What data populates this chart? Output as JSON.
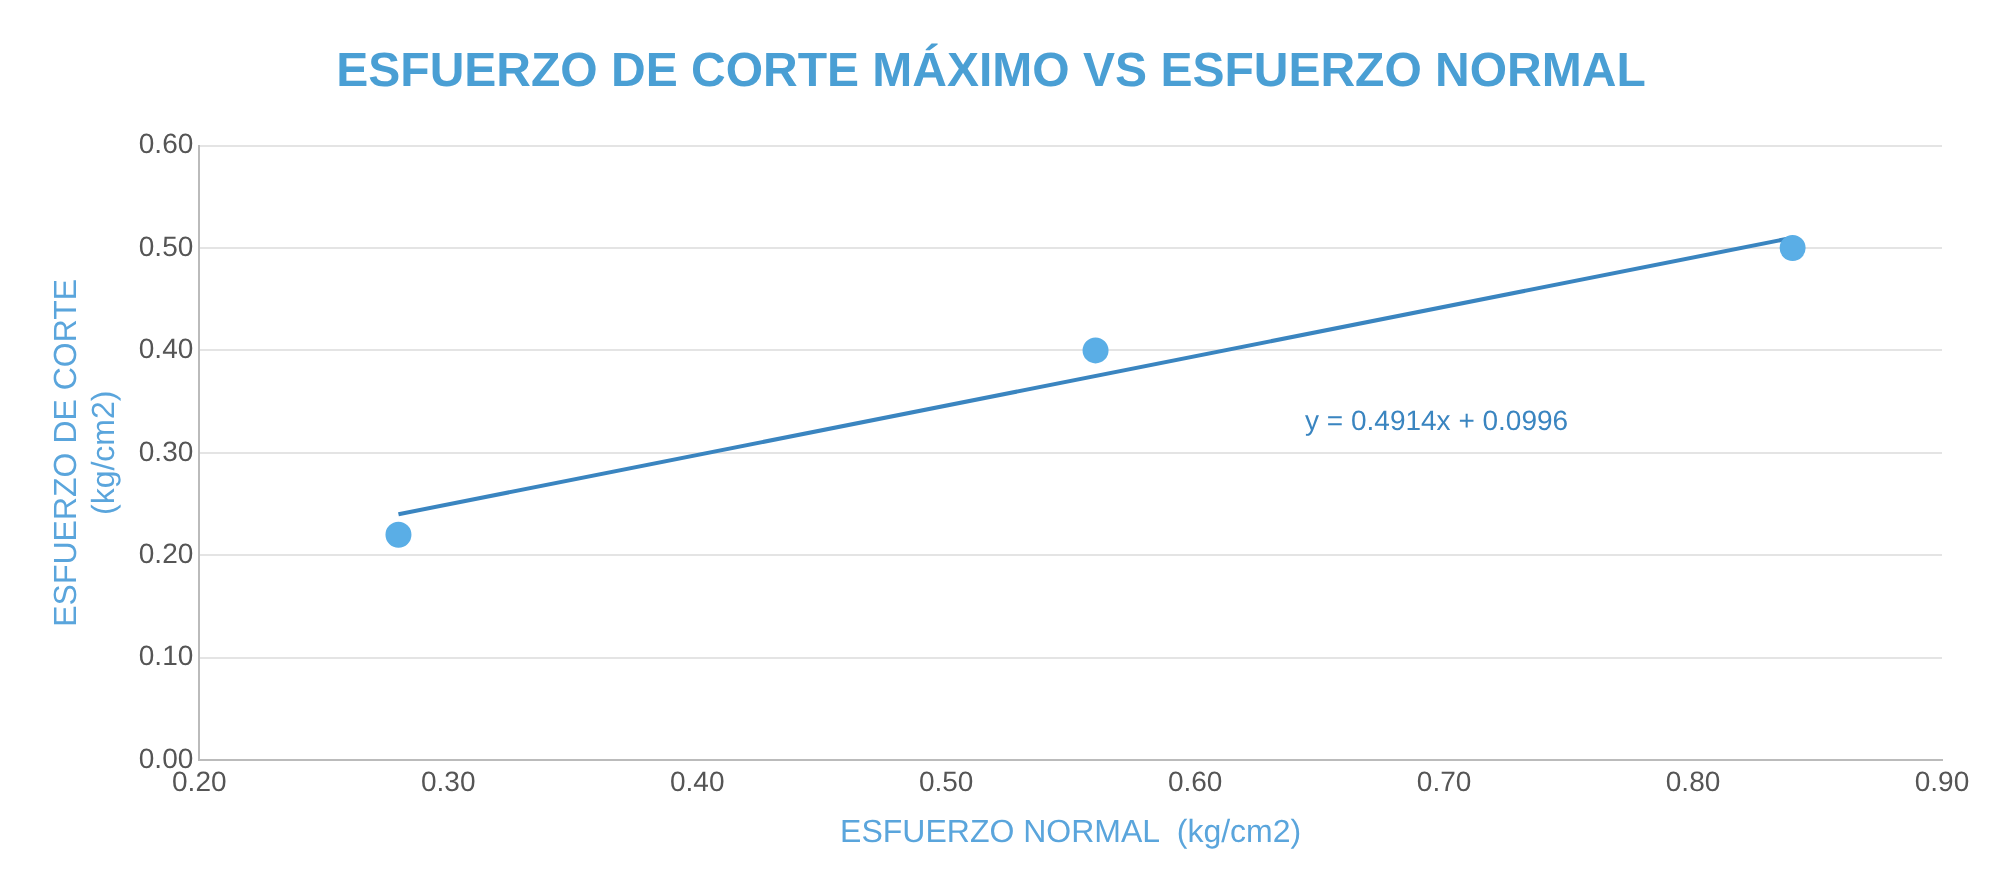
{
  "chart_data": {
    "type": "scatter",
    "title": "ESFUERZO DE CORTE MÁXIMO VS ESFUERZO NORMAL",
    "xlabel": "ESFUERZO NORMAL  (kg/cm2)",
    "ylabel": "ESFUERZO DE CORTE\n(kg/cm2)",
    "series": [
      {
        "color": "#5aaee6",
        "x": [
          0.28,
          0.56,
          0.84
        ],
        "values": [
          0.22,
          0.4,
          0.5
        ]
      },
      {
        "type": "line",
        "marker": "none",
        "color": "#3a85c0",
        "x": [
          0.28,
          0.84
        ],
        "values": [
          0.24,
          0.51
        ]
      }
    ],
    "annotations": [
      "y = 0.4914x + 0.0996"
    ],
    "xlim": [
      0.2,
      0.9
    ],
    "xticks": [
      {
        "value": 0.2,
        "label": "0.20"
      },
      {
        "value": 0.3,
        "label": "0.30"
      },
      {
        "value": 0.4,
        "label": "0.40"
      },
      {
        "value": 0.5,
        "label": "0.50"
      },
      {
        "value": 0.6,
        "label": "0.60"
      },
      {
        "value": 0.7,
        "label": "0.70"
      },
      {
        "value": 0.8,
        "label": "0.80"
      },
      {
        "value": 0.9,
        "label": "0.90"
      }
    ],
    "ylim": [
      0,
      0.6
    ],
    "yticks": [
      {
        "value": 0,
        "label": "0.00"
      },
      {
        "value": 0.1,
        "label": "0.10"
      },
      {
        "value": 0.2,
        "label": "0.20"
      },
      {
        "value": 0.3,
        "label": "0.30"
      },
      {
        "value": 0.4,
        "label": "0.40"
      },
      {
        "value": 0.5,
        "label": "0.50"
      },
      {
        "value": 0.6,
        "label": "0.60"
      }
    ],
    "grid": "y",
    "legend": false,
    "marker": "circle",
    "line_style": "solid"
  }
}
